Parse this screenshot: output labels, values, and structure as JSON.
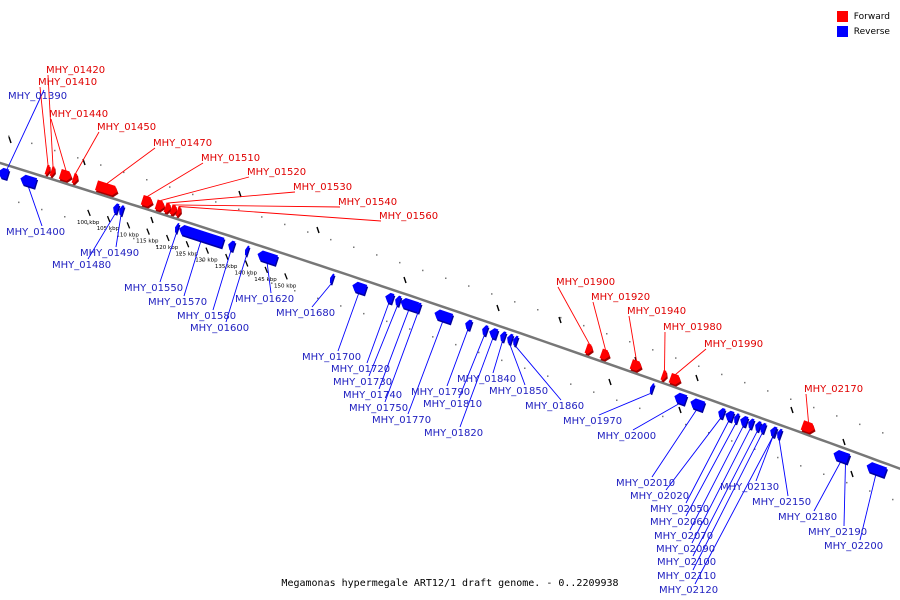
{
  "legend": {
    "forward_label": "Forward",
    "reverse_label": "Reverse",
    "forward_color": "#ff0000",
    "reverse_color": "#0000ff"
  },
  "caption": "Megamonas hypermegale ART12/1 draft genome. - 0..2209938",
  "chart_data": {
    "type": "genome-map",
    "ruler": [
      {
        "kbp": 100,
        "label": "100 kbp"
      },
      {
        "kbp": 105,
        "label": "105 kbp"
      },
      {
        "kbp": 110,
        "label": "110 kbp"
      },
      {
        "kbp": 115,
        "label": "115 kbp"
      },
      {
        "kbp": 120,
        "label": "120 kbp"
      },
      {
        "kbp": 125,
        "label": "125 kbp"
      },
      {
        "kbp": 130,
        "label": "130 kbp"
      },
      {
        "kbp": 135,
        "label": "135 kbp"
      },
      {
        "kbp": 140,
        "label": "140 kbp"
      },
      {
        "kbp": 145,
        "label": "145 kbp"
      },
      {
        "kbp": 150,
        "label": "150 kbp"
      }
    ],
    "genes": [
      {
        "name": "MHY_01390",
        "strand": "reverse"
      },
      {
        "name": "MHY_01400",
        "strand": "reverse"
      },
      {
        "name": "MHY_01410",
        "strand": "forward"
      },
      {
        "name": "MHY_01420",
        "strand": "forward"
      },
      {
        "name": "MHY_01440",
        "strand": "forward"
      },
      {
        "name": "MHY_01450",
        "strand": "forward"
      },
      {
        "name": "MHY_01470",
        "strand": "forward"
      },
      {
        "name": "MHY_01480",
        "strand": "reverse"
      },
      {
        "name": "MHY_01490",
        "strand": "reverse"
      },
      {
        "name": "MHY_01510",
        "strand": "forward"
      },
      {
        "name": "MHY_01520",
        "strand": "forward"
      },
      {
        "name": "MHY_01530",
        "strand": "forward"
      },
      {
        "name": "MHY_01540",
        "strand": "forward"
      },
      {
        "name": "MHY_01550",
        "strand": "reverse"
      },
      {
        "name": "MHY_01560",
        "strand": "forward"
      },
      {
        "name": "MHY_01570",
        "strand": "reverse"
      },
      {
        "name": "MHY_01580",
        "strand": "reverse"
      },
      {
        "name": "MHY_01600",
        "strand": "reverse"
      },
      {
        "name": "MHY_01620",
        "strand": "reverse"
      },
      {
        "name": "MHY_01680",
        "strand": "reverse"
      },
      {
        "name": "MHY_01700",
        "strand": "reverse"
      },
      {
        "name": "MHY_01720",
        "strand": "reverse"
      },
      {
        "name": "MHY_01730",
        "strand": "reverse"
      },
      {
        "name": "MHY_01740",
        "strand": "reverse"
      },
      {
        "name": "MHY_01750",
        "strand": "reverse"
      },
      {
        "name": "MHY_01770",
        "strand": "reverse"
      },
      {
        "name": "MHY_01790",
        "strand": "reverse"
      },
      {
        "name": "MHY_01810",
        "strand": "reverse"
      },
      {
        "name": "MHY_01820",
        "strand": "reverse"
      },
      {
        "name": "MHY_01840",
        "strand": "reverse"
      },
      {
        "name": "MHY_01850",
        "strand": "reverse"
      },
      {
        "name": "MHY_01860",
        "strand": "reverse"
      },
      {
        "name": "MHY_01900",
        "strand": "forward"
      },
      {
        "name": "MHY_01920",
        "strand": "forward"
      },
      {
        "name": "MHY_01940",
        "strand": "forward"
      },
      {
        "name": "MHY_01970",
        "strand": "reverse"
      },
      {
        "name": "MHY_01980",
        "strand": "forward"
      },
      {
        "name": "MHY_01990",
        "strand": "forward"
      },
      {
        "name": "MHY_02000",
        "strand": "reverse"
      },
      {
        "name": "MHY_02010",
        "strand": "reverse"
      },
      {
        "name": "MHY_02020",
        "strand": "reverse"
      },
      {
        "name": "MHY_02050",
        "strand": "reverse"
      },
      {
        "name": "MHY_02060",
        "strand": "reverse"
      },
      {
        "name": "MHY_02070",
        "strand": "reverse"
      },
      {
        "name": "MHY_02090",
        "strand": "reverse"
      },
      {
        "name": "MHY_02100",
        "strand": "reverse"
      },
      {
        "name": "MHY_02110",
        "strand": "reverse"
      },
      {
        "name": "MHY_02120",
        "strand": "reverse"
      },
      {
        "name": "MHY_02130",
        "strand": "reverse"
      },
      {
        "name": "MHY_02150",
        "strand": "reverse"
      },
      {
        "name": "MHY_02170",
        "strand": "forward"
      },
      {
        "name": "MHY_02180",
        "strand": "reverse"
      },
      {
        "name": "MHY_02190",
        "strand": "reverse"
      },
      {
        "name": "MHY_02200",
        "strand": "reverse"
      }
    ]
  }
}
